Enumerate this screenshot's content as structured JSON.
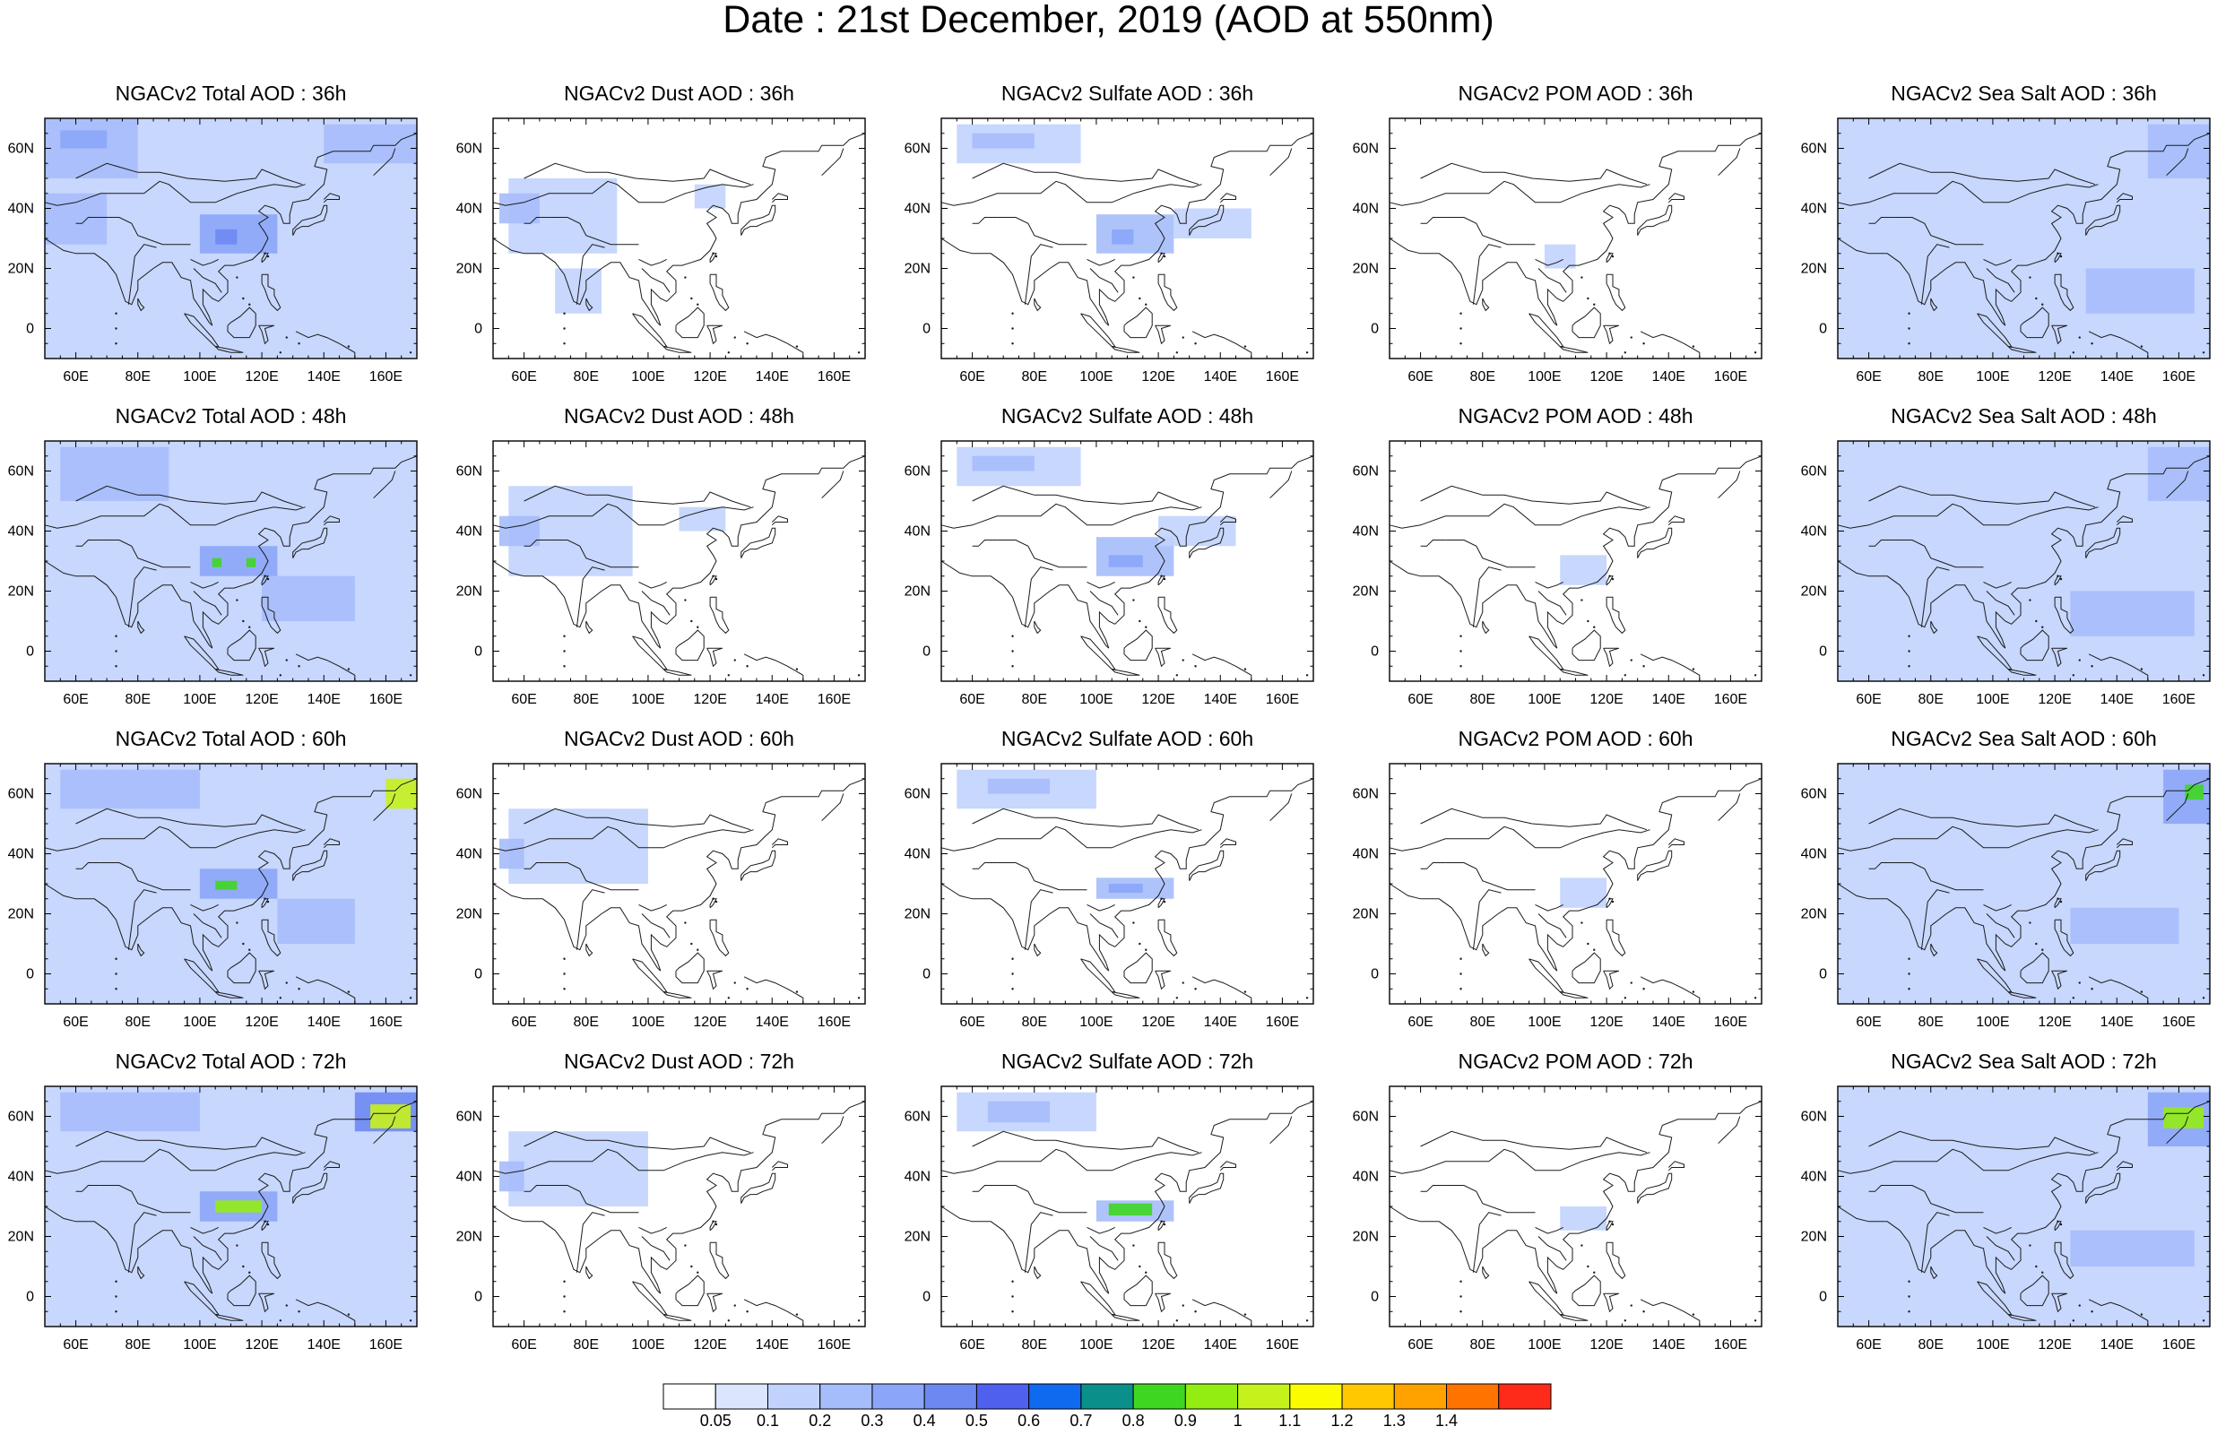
{
  "figure": {
    "title": "Date : 21st December, 2019 (AOD at 550nm)"
  },
  "axes": {
    "x_ticks": [
      "60E",
      "80E",
      "100E",
      "120E",
      "140E",
      "160E"
    ],
    "x_tick_values": [
      60,
      80,
      100,
      120,
      140,
      160
    ],
    "y_ticks": [
      "60N",
      "40N",
      "20N",
      "0"
    ],
    "y_tick_values": [
      60,
      40,
      20,
      0
    ],
    "xlim": [
      50,
      170
    ],
    "ylim": [
      -10,
      70
    ]
  },
  "colorbar": {
    "levels": [
      "0.05",
      "0.1",
      "0.2",
      "0.3",
      "0.4",
      "0.5",
      "0.6",
      "0.7",
      "0.8",
      "0.9",
      "1",
      "1.1",
      "1.2",
      "1.3",
      "1.4"
    ],
    "colors": [
      "#ffffff",
      "#dbe6fe",
      "#c1d3fd",
      "#a6bdfb",
      "#8ba6f8",
      "#6e88f2",
      "#5060ee",
      "#0f6af0",
      "#0b8f8a",
      "#3fd621",
      "#93ec12",
      "#c6f21c",
      "#fbfc00",
      "#ffc800",
      "#ffa200",
      "#ff7400",
      "#ff2b1a"
    ]
  },
  "panels": [
    {
      "title": "NGACv2 Total AOD : 36h",
      "species": "total",
      "hour": 36
    },
    {
      "title": "NGACv2 Dust AOD : 36h",
      "species": "dust",
      "hour": 36
    },
    {
      "title": "NGACv2 Sulfate AOD : 36h",
      "species": "sulfate",
      "hour": 36
    },
    {
      "title": "NGACv2 POM AOD : 36h",
      "species": "pom",
      "hour": 36
    },
    {
      "title": "NGACv2 Sea Salt AOD : 36h",
      "species": "seasalt",
      "hour": 36
    },
    {
      "title": "NGACv2 Total AOD : 48h",
      "species": "total",
      "hour": 48
    },
    {
      "title": "NGACv2 Dust AOD : 48h",
      "species": "dust",
      "hour": 48
    },
    {
      "title": "NGACv2 Sulfate AOD : 48h",
      "species": "sulfate",
      "hour": 48
    },
    {
      "title": "NGACv2 POM AOD : 48h",
      "species": "pom",
      "hour": 48
    },
    {
      "title": "NGACv2 Sea Salt AOD : 48h",
      "species": "seasalt",
      "hour": 48
    },
    {
      "title": "NGACv2 Total AOD : 60h",
      "species": "total",
      "hour": 60
    },
    {
      "title": "NGACv2 Dust AOD : 60h",
      "species": "dust",
      "hour": 60
    },
    {
      "title": "NGACv2 Sulfate AOD : 60h",
      "species": "sulfate",
      "hour": 60
    },
    {
      "title": "NGACv2 POM AOD : 60h",
      "species": "pom",
      "hour": 60
    },
    {
      "title": "NGACv2 Sea Salt AOD : 60h",
      "species": "seasalt",
      "hour": 60
    },
    {
      "title": "NGACv2 Total AOD : 72h",
      "species": "total",
      "hour": 72
    },
    {
      "title": "NGACv2 Dust AOD : 72h",
      "species": "dust",
      "hour": 72
    },
    {
      "title": "NGACv2 Sulfate AOD : 72h",
      "species": "sulfate",
      "hour": 72
    },
    {
      "title": "NGACv2 POM AOD : 72h",
      "species": "pom",
      "hour": 72
    },
    {
      "title": "NGACv2 Sea Salt  AOD : 72h",
      "species": "seasalt",
      "hour": 72
    }
  ],
  "chart_data": {
    "type": "heatmap",
    "title": "Date : 21st December, 2019 (AOD at 550nm)",
    "xlabel": "",
    "ylabel": "",
    "xlim": [
      50,
      170
    ],
    "ylim": [
      -10,
      70
    ],
    "grid": false,
    "legend": "bottom",
    "note_fields": "approximate AOD plumes per panel: [lon_min, lon_max, lat_min, lat_max, value]",
    "fields": {
      "total_36": [
        [
          50,
          170,
          -10,
          70,
          0.1
        ],
        [
          50,
          80,
          50,
          70,
          0.2
        ],
        [
          55,
          70,
          60,
          66,
          0.3
        ],
        [
          100,
          125,
          25,
          38,
          0.3
        ],
        [
          105,
          112,
          28,
          33,
          0.4
        ],
        [
          50,
          70,
          28,
          45,
          0.2
        ],
        [
          140,
          170,
          55,
          68,
          0.2
        ]
      ],
      "dust_36": [
        [
          55,
          90,
          25,
          50,
          0.1
        ],
        [
          52,
          65,
          35,
          45,
          0.2
        ],
        [
          70,
          85,
          5,
          20,
          0.1
        ],
        [
          115,
          125,
          40,
          48,
          0.1
        ]
      ],
      "sulfate_36": [
        [
          55,
          95,
          55,
          68,
          0.1
        ],
        [
          60,
          80,
          60,
          65,
          0.2
        ],
        [
          100,
          125,
          25,
          38,
          0.2
        ],
        [
          105,
          112,
          28,
          33,
          0.3
        ],
        [
          125,
          150,
          30,
          40,
          0.1
        ]
      ],
      "pom_36": [
        [
          100,
          110,
          20,
          28,
          0.1
        ]
      ],
      "seasalt_36": [
        [
          50,
          170,
          -10,
          70,
          0.1
        ],
        [
          150,
          170,
          50,
          68,
          0.2
        ],
        [
          130,
          165,
          5,
          20,
          0.2
        ]
      ],
      "total_48": [
        [
          50,
          170,
          -10,
          70,
          0.1
        ],
        [
          55,
          90,
          50,
          68,
          0.2
        ],
        [
          100,
          125,
          25,
          35,
          0.3
        ],
        [
          104,
          107,
          28,
          31,
          0.8
        ],
        [
          115,
          118,
          28,
          31,
          0.8
        ],
        [
          120,
          150,
          10,
          25,
          0.2
        ]
      ],
      "dust_48": [
        [
          55,
          95,
          25,
          55,
          0.1
        ],
        [
          52,
          65,
          35,
          45,
          0.2
        ],
        [
          110,
          125,
          40,
          48,
          0.1
        ]
      ],
      "sulfate_48": [
        [
          55,
          95,
          55,
          68,
          0.1
        ],
        [
          60,
          80,
          60,
          65,
          0.2
        ],
        [
          100,
          125,
          25,
          38,
          0.2
        ],
        [
          104,
          115,
          28,
          32,
          0.3
        ],
        [
          120,
          145,
          35,
          45,
          0.1
        ]
      ],
      "pom_48": [
        [
          105,
          120,
          22,
          32,
          0.1
        ]
      ],
      "seasalt_48": [
        [
          50,
          170,
          -10,
          70,
          0.1
        ],
        [
          150,
          170,
          50,
          68,
          0.2
        ],
        [
          125,
          165,
          5,
          20,
          0.2
        ]
      ],
      "total_60": [
        [
          50,
          170,
          -10,
          70,
          0.1
        ],
        [
          55,
          100,
          55,
          68,
          0.2
        ],
        [
          100,
          125,
          25,
          35,
          0.3
        ],
        [
          105,
          112,
          28,
          31,
          0.8
        ],
        [
          160,
          170,
          55,
          65,
          1.0
        ],
        [
          125,
          150,
          10,
          25,
          0.2
        ]
      ],
      "dust_60": [
        [
          55,
          100,
          30,
          55,
          0.1
        ],
        [
          52,
          60,
          35,
          45,
          0.2
        ]
      ],
      "sulfate_60": [
        [
          55,
          100,
          55,
          68,
          0.1
        ],
        [
          65,
          85,
          60,
          65,
          0.2
        ],
        [
          100,
          125,
          25,
          32,
          0.2
        ],
        [
          104,
          115,
          27,
          30,
          0.3
        ]
      ],
      "pom_60": [
        [
          105,
          120,
          22,
          32,
          0.1
        ]
      ],
      "seasalt_60": [
        [
          50,
          170,
          -10,
          70,
          0.1
        ],
        [
          155,
          170,
          50,
          68,
          0.3
        ],
        [
          162,
          168,
          58,
          63,
          0.8
        ],
        [
          125,
          160,
          10,
          22,
          0.2
        ]
      ],
      "total_72": [
        [
          50,
          170,
          -10,
          70,
          0.1
        ],
        [
          55,
          100,
          55,
          68,
          0.2
        ],
        [
          100,
          125,
          25,
          35,
          0.3
        ],
        [
          105,
          120,
          28,
          32,
          0.9
        ],
        [
          150,
          170,
          55,
          68,
          0.4
        ],
        [
          155,
          168,
          56,
          64,
          1.0
        ]
      ],
      "dust_72": [
        [
          55,
          100,
          30,
          55,
          0.1
        ],
        [
          52,
          60,
          35,
          45,
          0.2
        ]
      ],
      "sulfate_72": [
        [
          55,
          100,
          55,
          68,
          0.1
        ],
        [
          65,
          85,
          58,
          65,
          0.2
        ],
        [
          100,
          125,
          25,
          32,
          0.2
        ],
        [
          104,
          118,
          27,
          31,
          0.8
        ]
      ],
      "pom_72": [
        [
          105,
          120,
          22,
          30,
          0.1
        ]
      ],
      "seasalt_72": [
        [
          50,
          170,
          -10,
          70,
          0.1
        ],
        [
          150,
          170,
          50,
          68,
          0.3
        ],
        [
          155,
          168,
          56,
          63,
          0.9
        ],
        [
          125,
          165,
          10,
          22,
          0.2
        ]
      ]
    }
  }
}
